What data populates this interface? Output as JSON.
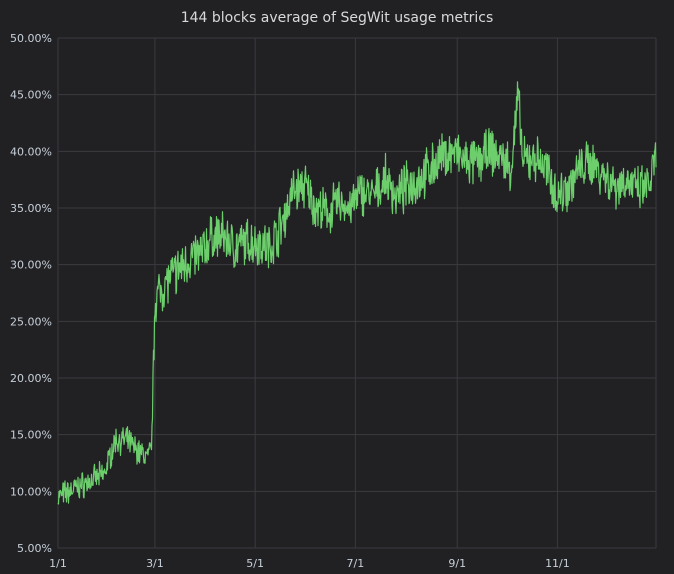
{
  "panel": {
    "title": "144 blocks average of SegWit usage metrics"
  },
  "colors": {
    "background": "#212124",
    "grid": "#3b3b3f",
    "line": "#6ccf6c",
    "text": "#c7d0d9"
  },
  "chart_data": {
    "type": "line",
    "title": "144 blocks average of SegWit usage metrics",
    "xlabel": "",
    "ylabel": "",
    "ylim": [
      5,
      50
    ],
    "y_unit": "%",
    "y_ticks": [
      "5.00%",
      "10.00%",
      "15.00%",
      "20.00%",
      "25.00%",
      "30.00%",
      "35.00%",
      "40.00%",
      "45.00%",
      "50.00%"
    ],
    "x_ticks": [
      "1/1",
      "3/1",
      "5/1",
      "7/1",
      "9/1",
      "11/1"
    ],
    "xlim": [
      "1/1",
      "12/31"
    ],
    "grid": true,
    "legend": "none",
    "series": [
      {
        "x": [
          "1/1",
          "1/8",
          "1/15",
          "1/22",
          "1/29",
          "2/5",
          "2/12",
          "2/19",
          "2/25",
          "2/27",
          "3/1",
          "3/8",
          "3/15",
          "3/22",
          "3/29",
          "4/5",
          "4/12",
          "4/19",
          "4/26",
          "5/3",
          "5/10",
          "5/17",
          "5/24",
          "5/31",
          "6/7",
          "6/14",
          "6/21",
          "6/28",
          "7/5",
          "7/12",
          "7/19",
          "7/26",
          "8/2",
          "8/9",
          "8/16",
          "8/23",
          "8/30",
          "9/6",
          "9/13",
          "9/20",
          "9/27",
          "10/1",
          "10/4",
          "10/8",
          "10/11",
          "10/18",
          "10/25",
          "11/1",
          "11/8",
          "11/15",
          "11/22",
          "11/29",
          "12/6",
          "12/13",
          "12/20",
          "12/27",
          "12/31"
        ],
        "values": [
          9.5,
          10.0,
          10.5,
          11.0,
          11.5,
          14.5,
          14.5,
          13.5,
          13.0,
          14.0,
          27.0,
          28.5,
          29.5,
          30.5,
          31.0,
          32.5,
          32.5,
          31.5,
          32.0,
          32.0,
          31.5,
          33.5,
          36.5,
          37.0,
          35.0,
          34.5,
          35.5,
          35.0,
          36.5,
          36.0,
          37.5,
          36.0,
          37.0,
          37.5,
          38.5,
          39.5,
          40.0,
          39.0,
          39.0,
          40.0,
          39.5,
          39.0,
          38.5,
          45.0,
          39.0,
          39.5,
          38.5,
          36.0,
          37.0,
          38.5,
          39.0,
          38.0,
          37.0,
          37.5,
          36.5,
          37.0,
          39.5
        ],
        "min": 8.5,
        "max": 47.5
      }
    ]
  }
}
